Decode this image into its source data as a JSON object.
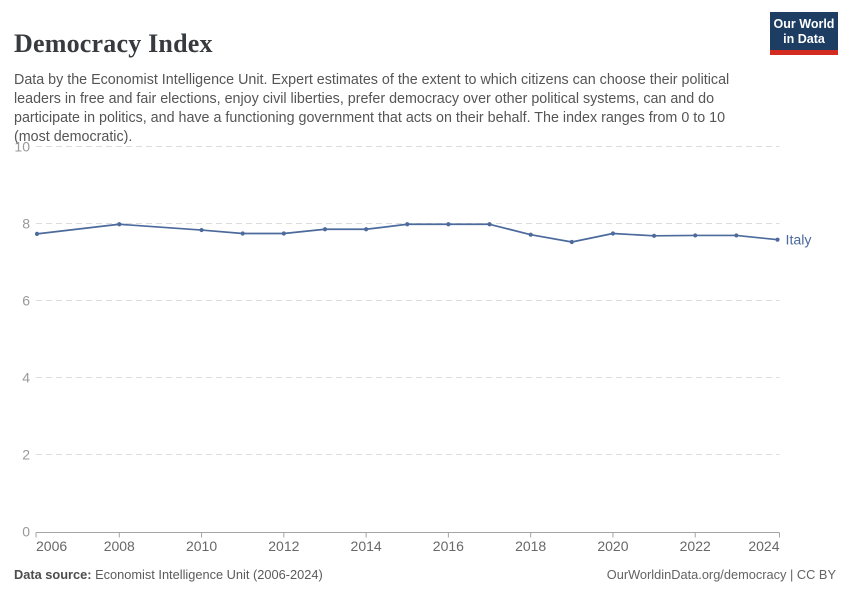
{
  "header": {
    "title": "Democracy Index",
    "subtitle": "Data by the Economist Intelligence Unit. Expert estimates of the extent to which citizens can choose their political leaders in free and fair elections, enjoy civil liberties, prefer democracy over other political systems, can and do participate in politics, and have a functioning government that acts on their behalf. The index ranges from 0 to 10 (most democratic).",
    "logo": {
      "line1": "Our World",
      "line2": "in Data",
      "bg_color": "#1d3d63",
      "accent_color": "#d42b21"
    }
  },
  "chart_data": {
    "type": "line",
    "title": "Democracy Index",
    "xlabel": "",
    "ylabel": "",
    "xlim": [
      2006,
      2024
    ],
    "ylim": [
      0,
      10
    ],
    "x_ticks": [
      2006,
      2008,
      2010,
      2012,
      2014,
      2016,
      2018,
      2020,
      2022,
      2024
    ],
    "y_ticks": [
      0,
      2,
      4,
      6,
      8,
      10
    ],
    "grid": "horizontal-dashed",
    "legend_position": "end-of-line-label",
    "series": [
      {
        "name": "Italy",
        "color": "#4C6A9C",
        "x": [
          2006,
          2008,
          2010,
          2011,
          2012,
          2013,
          2014,
          2015,
          2016,
          2017,
          2018,
          2019,
          2020,
          2021,
          2022,
          2023,
          2024
        ],
        "values": [
          7.73,
          7.98,
          7.83,
          7.74,
          7.74,
          7.85,
          7.85,
          7.98,
          7.98,
          7.98,
          7.71,
          7.52,
          7.74,
          7.68,
          7.69,
          7.69,
          7.58
        ]
      }
    ],
    "colors": {
      "gridline": "#dcdcdc",
      "axis_line": "#a5a5a5",
      "y_tick_label": "#999999",
      "x_tick_label": "#686868"
    }
  },
  "footer": {
    "data_source_label": "Data source:",
    "data_source_value": " Economist Intelligence Unit (2006-2024)",
    "attribution": "OurWorldinData.org/democracy | CC BY"
  }
}
